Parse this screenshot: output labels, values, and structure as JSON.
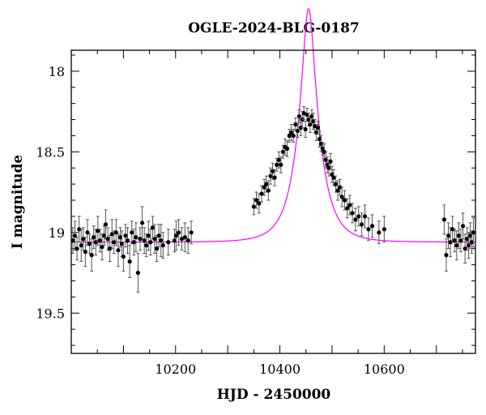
{
  "chart_data": {
    "type": "scatter",
    "title": "OGLE-2024-BLG-0187",
    "xlabel": "HJD - 2450000",
    "ylabel": "I magnitude",
    "xlim": [
      10000,
      10775
    ],
    "ylim": [
      19.75,
      17.87
    ],
    "y_inverted": true,
    "x_ticks": [
      10200,
      10400,
      10600
    ],
    "y_ticks": [
      18,
      18.5,
      19,
      19.5
    ],
    "colors": {
      "points": "#000000",
      "errorbars": "#555555",
      "model": "#ff00ff",
      "frame": "#000000"
    },
    "model": {
      "name": "",
      "type": "paczynski",
      "baseline_mag": 19.06,
      "t0": 10455,
      "u0": 0.27,
      "tE": 40
    },
    "series": [
      {
        "name": "",
        "points": [
          {
            "x": 10003,
            "y": 19.05,
            "err": 0.08
          },
          {
            "x": 10007,
            "y": 19.02,
            "err": 0.09
          },
          {
            "x": 10011,
            "y": 19.1,
            "err": 0.07
          },
          {
            "x": 10015,
            "y": 18.98,
            "err": 0.08
          },
          {
            "x": 10019,
            "y": 19.08,
            "err": 0.1
          },
          {
            "x": 10023,
            "y": 19.04,
            "err": 0.07
          },
          {
            "x": 10027,
            "y": 19.12,
            "err": 0.09
          },
          {
            "x": 10031,
            "y": 19.0,
            "err": 0.08
          },
          {
            "x": 10035,
            "y": 19.07,
            "err": 0.06
          },
          {
            "x": 10039,
            "y": 19.14,
            "err": 0.1
          },
          {
            "x": 10043,
            "y": 19.03,
            "err": 0.07
          },
          {
            "x": 10047,
            "y": 19.06,
            "err": 0.08
          },
          {
            "x": 10051,
            "y": 18.99,
            "err": 0.09
          },
          {
            "x": 10055,
            "y": 19.05,
            "err": 0.07
          },
          {
            "x": 10059,
            "y": 19.09,
            "err": 0.08
          },
          {
            "x": 10063,
            "y": 19.02,
            "err": 0.06
          },
          {
            "x": 10066,
            "y": 18.95,
            "err": 0.09
          },
          {
            "x": 10070,
            "y": 19.04,
            "err": 0.07
          },
          {
            "x": 10074,
            "y": 19.1,
            "err": 0.08
          },
          {
            "x": 10078,
            "y": 19.01,
            "err": 0.09
          },
          {
            "x": 10082,
            "y": 19.06,
            "err": 0.07
          },
          {
            "x": 10086,
            "y": 19.0,
            "err": 0.08
          },
          {
            "x": 10090,
            "y": 19.11,
            "err": 0.1
          },
          {
            "x": 10094,
            "y": 19.03,
            "err": 0.06
          },
          {
            "x": 10097,
            "y": 19.07,
            "err": 0.08
          },
          {
            "x": 10100,
            "y": 19.15,
            "err": 0.09
          },
          {
            "x": 10104,
            "y": 19.02,
            "err": 0.07
          },
          {
            "x": 10108,
            "y": 19.05,
            "err": 0.08
          },
          {
            "x": 10112,
            "y": 19.18,
            "err": 0.1
          },
          {
            "x": 10116,
            "y": 19.0,
            "err": 0.07
          },
          {
            "x": 10120,
            "y": 19.06,
            "err": 0.08
          },
          {
            "x": 10124,
            "y": 19.03,
            "err": 0.09
          },
          {
            "x": 10128,
            "y": 19.25,
            "err": 0.12
          },
          {
            "x": 10132,
            "y": 19.04,
            "err": 0.07
          },
          {
            "x": 10136,
            "y": 18.94,
            "err": 0.1
          },
          {
            "x": 10140,
            "y": 19.05,
            "err": 0.08
          },
          {
            "x": 10144,
            "y": 19.08,
            "err": 0.07
          },
          {
            "x": 10148,
            "y": 19.02,
            "err": 0.09
          },
          {
            "x": 10152,
            "y": 19.06,
            "err": 0.08
          },
          {
            "x": 10156,
            "y": 18.97,
            "err": 0.07
          },
          {
            "x": 10160,
            "y": 19.04,
            "err": 0.09
          },
          {
            "x": 10164,
            "y": 19.1,
            "err": 0.08
          },
          {
            "x": 10168,
            "y": 19.02,
            "err": 0.07
          },
          {
            "x": 10172,
            "y": 19.05,
            "err": 0.1
          },
          {
            "x": 10176,
            "y": 19.08,
            "err": 0.08
          },
          {
            "x": 10186,
            "y": 19.06,
            "err": 0.08
          },
          {
            "x": 10198,
            "y": 19.05,
            "err": 0.07
          },
          {
            "x": 10201,
            "y": 19.02,
            "err": 0.09
          },
          {
            "x": 10206,
            "y": 19.0,
            "err": 0.08
          },
          {
            "x": 10212,
            "y": 19.04,
            "err": 0.07
          },
          {
            "x": 10218,
            "y": 19.03,
            "err": 0.09
          },
          {
            "x": 10224,
            "y": 19.05,
            "err": 0.08
          },
          {
            "x": 10230,
            "y": 19.0,
            "err": 0.07
          },
          {
            "x": 10350,
            "y": 18.84,
            "err": 0.05
          },
          {
            "x": 10355,
            "y": 18.8,
            "err": 0.05
          },
          {
            "x": 10360,
            "y": 18.82,
            "err": 0.06
          },
          {
            "x": 10365,
            "y": 18.76,
            "err": 0.05
          },
          {
            "x": 10370,
            "y": 18.72,
            "err": 0.05
          },
          {
            "x": 10374,
            "y": 18.7,
            "err": 0.05
          },
          {
            "x": 10378,
            "y": 18.74,
            "err": 0.06
          },
          {
            "x": 10382,
            "y": 18.65,
            "err": 0.05
          },
          {
            "x": 10386,
            "y": 18.62,
            "err": 0.05
          },
          {
            "x": 10390,
            "y": 18.66,
            "err": 0.05
          },
          {
            "x": 10394,
            "y": 18.58,
            "err": 0.04
          },
          {
            "x": 10398,
            "y": 18.55,
            "err": 0.05
          },
          {
            "x": 10402,
            "y": 18.58,
            "err": 0.05
          },
          {
            "x": 10406,
            "y": 18.5,
            "err": 0.04
          },
          {
            "x": 10410,
            "y": 18.47,
            "err": 0.05
          },
          {
            "x": 10414,
            "y": 18.48,
            "err": 0.05
          },
          {
            "x": 10418,
            "y": 18.4,
            "err": 0.04
          },
          {
            "x": 10422,
            "y": 18.38,
            "err": 0.05
          },
          {
            "x": 10426,
            "y": 18.4,
            "err": 0.04
          },
          {
            "x": 10430,
            "y": 18.33,
            "err": 0.04
          },
          {
            "x": 10434,
            "y": 18.37,
            "err": 0.04
          },
          {
            "x": 10437,
            "y": 18.28,
            "err": 0.04
          },
          {
            "x": 10440,
            "y": 18.35,
            "err": 0.05
          },
          {
            "x": 10443,
            "y": 18.3,
            "err": 0.05
          },
          {
            "x": 10446,
            "y": 18.26,
            "err": 0.04
          },
          {
            "x": 10449,
            "y": 18.36,
            "err": 0.05
          },
          {
            "x": 10452,
            "y": 18.27,
            "err": 0.04
          },
          {
            "x": 10455,
            "y": 18.3,
            "err": 0.04
          },
          {
            "x": 10458,
            "y": 18.33,
            "err": 0.05
          },
          {
            "x": 10461,
            "y": 18.28,
            "err": 0.04
          },
          {
            "x": 10464,
            "y": 18.31,
            "err": 0.05
          },
          {
            "x": 10467,
            "y": 18.34,
            "err": 0.04
          },
          {
            "x": 10470,
            "y": 18.38,
            "err": 0.05
          },
          {
            "x": 10473,
            "y": 18.35,
            "err": 0.04
          },
          {
            "x": 10476,
            "y": 18.42,
            "err": 0.05
          },
          {
            "x": 10479,
            "y": 18.45,
            "err": 0.05
          },
          {
            "x": 10482,
            "y": 18.48,
            "err": 0.04
          },
          {
            "x": 10485,
            "y": 18.5,
            "err": 0.05
          },
          {
            "x": 10488,
            "y": 18.55,
            "err": 0.05
          },
          {
            "x": 10491,
            "y": 18.58,
            "err": 0.05
          },
          {
            "x": 10494,
            "y": 18.6,
            "err": 0.05
          },
          {
            "x": 10497,
            "y": 18.56,
            "err": 0.05
          },
          {
            "x": 10500,
            "y": 18.64,
            "err": 0.05
          },
          {
            "x": 10503,
            "y": 18.66,
            "err": 0.05
          },
          {
            "x": 10507,
            "y": 18.7,
            "err": 0.05
          },
          {
            "x": 10511,
            "y": 18.74,
            "err": 0.06
          },
          {
            "x": 10515,
            "y": 18.72,
            "err": 0.05
          },
          {
            "x": 10519,
            "y": 18.78,
            "err": 0.06
          },
          {
            "x": 10524,
            "y": 18.8,
            "err": 0.06
          },
          {
            "x": 10529,
            "y": 18.85,
            "err": 0.06
          },
          {
            "x": 10534,
            "y": 18.83,
            "err": 0.06
          },
          {
            "x": 10539,
            "y": 18.88,
            "err": 0.06
          },
          {
            "x": 10545,
            "y": 18.92,
            "err": 0.07
          },
          {
            "x": 10551,
            "y": 18.9,
            "err": 0.06
          },
          {
            "x": 10557,
            "y": 18.95,
            "err": 0.07
          },
          {
            "x": 10563,
            "y": 18.9,
            "err": 0.07
          },
          {
            "x": 10570,
            "y": 18.98,
            "err": 0.07
          },
          {
            "x": 10577,
            "y": 18.96,
            "err": 0.07
          },
          {
            "x": 10590,
            "y": 19.0,
            "err": 0.07
          },
          {
            "x": 10600,
            "y": 18.98,
            "err": 0.08
          },
          {
            "x": 10715,
            "y": 18.92,
            "err": 0.09
          },
          {
            "x": 10719,
            "y": 19.14,
            "err": 0.1
          },
          {
            "x": 10723,
            "y": 19.02,
            "err": 0.08
          },
          {
            "x": 10727,
            "y": 19.06,
            "err": 0.09
          },
          {
            "x": 10731,
            "y": 18.98,
            "err": 0.08
          },
          {
            "x": 10735,
            "y": 19.05,
            "err": 0.07
          },
          {
            "x": 10739,
            "y": 19.08,
            "err": 0.09
          },
          {
            "x": 10743,
            "y": 19.02,
            "err": 0.08
          },
          {
            "x": 10747,
            "y": 19.05,
            "err": 0.07
          },
          {
            "x": 10751,
            "y": 18.96,
            "err": 0.08
          },
          {
            "x": 10755,
            "y": 19.1,
            "err": 0.09
          },
          {
            "x": 10759,
            "y": 19.04,
            "err": 0.07
          },
          {
            "x": 10762,
            "y": 19.08,
            "err": 0.08
          },
          {
            "x": 10765,
            "y": 19.02,
            "err": 0.08
          },
          {
            "x": 10768,
            "y": 19.06,
            "err": 0.07
          },
          {
            "x": 10771,
            "y": 19.0,
            "err": 0.09
          }
        ]
      }
    ]
  }
}
